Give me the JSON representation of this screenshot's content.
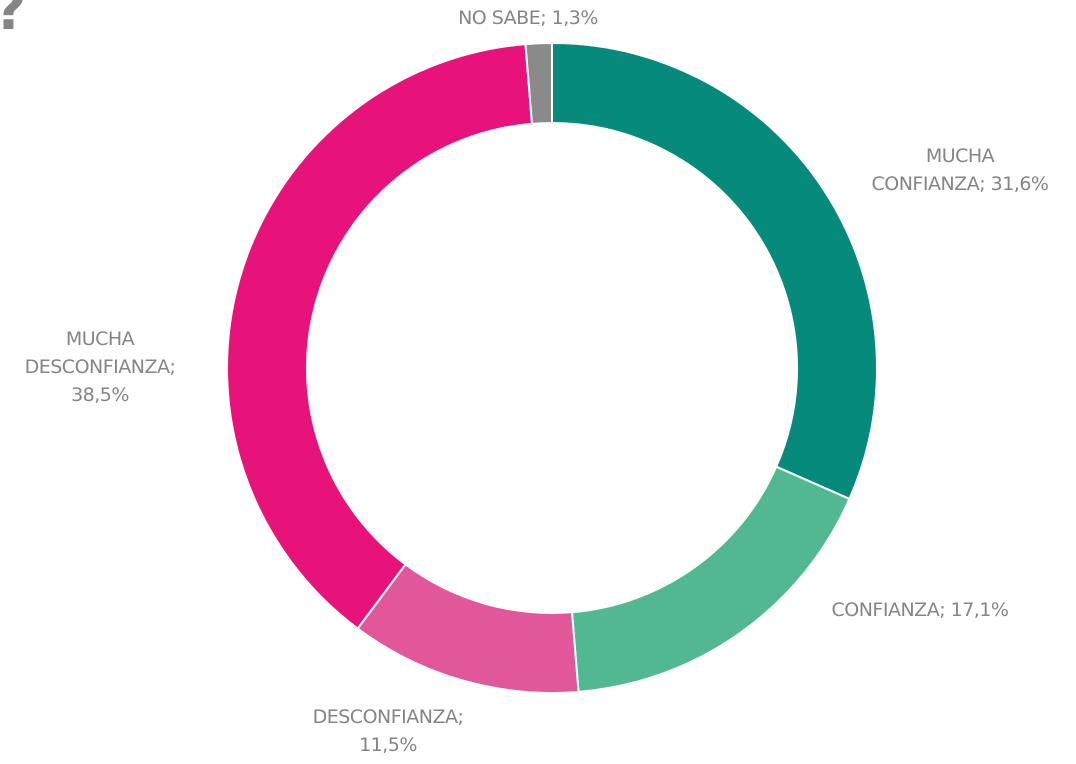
{
  "chart_data": {
    "type": "donut",
    "title": "?",
    "values": [
      31.6,
      17.1,
      11.5,
      38.5,
      1.3
    ],
    "value_labels": [
      "MUCHA\nCONFIANZA; 31,6%",
      "CONFIANZA; 17,1%",
      "DESCONFIANZA;\n11,5%",
      "MUCHA\nDESCONFIANZA;\n38,5%",
      "NO SABE; 1,3%"
    ],
    "colors": [
      "#068a7c",
      "#52b891",
      "#e2569a",
      "#e8137a",
      "#8a8a8a"
    ]
  }
}
